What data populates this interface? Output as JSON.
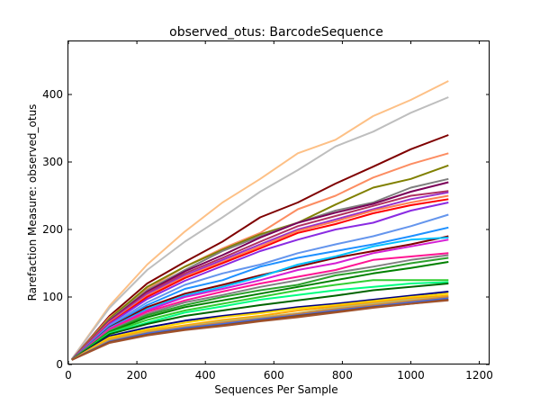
{
  "chart_data": {
    "type": "line",
    "title": "observed_otus: BarcodeSequence",
    "xlabel": "Sequences Per Sample",
    "ylabel": "Rarefaction Measure: observed_otus",
    "xlim": [
      0,
      1230
    ],
    "ylim": [
      0,
      480
    ],
    "x_ticks": [
      0,
      200,
      400,
      600,
      800,
      1000,
      1200
    ],
    "y_ticks": [
      0,
      100,
      200,
      300,
      400
    ],
    "grid": false,
    "legend": "none",
    "x": [
      10,
      120,
      230,
      340,
      450,
      560,
      670,
      780,
      890,
      1000,
      1110
    ],
    "series": [
      {
        "color": "#fdc086",
        "values": [
          8,
          87,
          148,
          197,
          240,
          275,
          313,
          333,
          368,
          392,
          420
        ]
      },
      {
        "color": "#bebebe",
        "values": [
          8,
          84,
          140,
          182,
          218,
          256,
          288,
          323,
          345,
          373,
          396
        ]
      },
      {
        "color": "#7f0000",
        "values": [
          7,
          72,
          120,
          152,
          182,
          218,
          240,
          268,
          293,
          319,
          340
        ]
      },
      {
        "color": "#fc8d62",
        "values": [
          7,
          70,
          112,
          145,
          172,
          195,
          230,
          250,
          277,
          297,
          313
        ]
      },
      {
        "color": "#808000",
        "values": [
          7,
          68,
          115,
          145,
          170,
          193,
          210,
          237,
          262,
          275,
          295
        ]
      },
      {
        "color": "#7f7f7f",
        "values": [
          7,
          66,
          110,
          140,
          168,
          190,
          210,
          228,
          240,
          262,
          275
        ]
      },
      {
        "color": "#7b0058",
        "values": [
          7,
          65,
          108,
          138,
          162,
          188,
          210,
          225,
          238,
          256,
          270
        ]
      },
      {
        "color": "#b03060",
        "values": [
          7,
          64,
          106,
          135,
          158,
          182,
          205,
          220,
          235,
          250,
          257
        ]
      },
      {
        "color": "#9932cc",
        "values": [
          7,
          63,
          104,
          132,
          155,
          178,
          200,
          215,
          230,
          245,
          255
        ]
      },
      {
        "color": "#ff7f50",
        "values": [
          7,
          62,
          102,
          130,
          152,
          175,
          198,
          212,
          228,
          240,
          250
        ]
      },
      {
        "color": "#ff0000",
        "values": [
          7,
          61,
          100,
          128,
          150,
          172,
          195,
          208,
          224,
          236,
          245
        ]
      },
      {
        "color": "#8a2be2",
        "values": [
          7,
          60,
          97,
          124,
          146,
          168,
          185,
          200,
          210,
          228,
          240
        ]
      },
      {
        "color": "#6495ed",
        "values": [
          7,
          58,
          92,
          118,
          135,
          148,
          165,
          178,
          190,
          205,
          222
        ]
      },
      {
        "color": "#1e90ff",
        "values": [
          7,
          56,
          88,
          112,
          125,
          145,
          158,
          168,
          178,
          190,
          203
        ]
      },
      {
        "color": "#7f0000",
        "values": [
          7,
          55,
          85,
          105,
          118,
          132,
          145,
          158,
          168,
          178,
          190
        ]
      },
      {
        "color": "#00bfff",
        "values": [
          7,
          54,
          82,
          102,
          115,
          130,
          148,
          160,
          175,
          185,
          188
        ]
      },
      {
        "color": "#d41ed4",
        "values": [
          7,
          53,
          80,
          100,
          112,
          125,
          140,
          150,
          165,
          175,
          185
        ]
      },
      {
        "color": "#ff1493",
        "values": [
          7,
          52,
          78,
          95,
          108,
          120,
          130,
          140,
          155,
          160,
          165
        ]
      },
      {
        "color": "#808080",
        "values": [
          7,
          50,
          75,
          92,
          103,
          115,
          125,
          136,
          145,
          155,
          162
        ]
      },
      {
        "color": "#2ca02c",
        "values": [
          7,
          49,
          73,
          88,
          100,
          110,
          118,
          132,
          140,
          150,
          158
        ]
      },
      {
        "color": "#008000",
        "values": [
          7,
          48,
          70,
          85,
          95,
          105,
          115,
          125,
          135,
          143,
          152
        ]
      },
      {
        "color": "#32cd32",
        "values": [
          7,
          47,
          66,
          80,
          90,
          100,
          110,
          118,
          125,
          125,
          125
        ]
      },
      {
        "color": "#00ff7f",
        "values": [
          7,
          46,
          62,
          77,
          86,
          96,
          103,
          110,
          115,
          120,
          122
        ]
      },
      {
        "color": "#006400",
        "values": [
          7,
          45,
          60,
          72,
          80,
          88,
          95,
          102,
          110,
          115,
          120
        ]
      },
      {
        "color": "#000080",
        "values": [
          7,
          42,
          55,
          65,
          72,
          78,
          85,
          90,
          96,
          102,
          108
        ]
      },
      {
        "color": "#ffd700",
        "values": [
          7,
          40,
          52,
          62,
          70,
          76,
          83,
          88,
          94,
          100,
          105
        ]
      },
      {
        "color": "#ffa500",
        "values": [
          7,
          38,
          50,
          58,
          66,
          72,
          80,
          86,
          92,
          98,
          102
        ]
      },
      {
        "color": "#bdb76b",
        "values": [
          7,
          36,
          48,
          56,
          64,
          70,
          76,
          84,
          90,
          96,
          100
        ]
      },
      {
        "color": "#cd853f",
        "values": [
          7,
          35,
          47,
          55,
          62,
          68,
          75,
          82,
          88,
          94,
          100
        ]
      },
      {
        "color": "#4169e1",
        "values": [
          7,
          34,
          46,
          54,
          60,
          67,
          73,
          80,
          86,
          92,
          98
        ]
      },
      {
        "color": "#8b4513",
        "values": [
          7,
          33,
          44,
          52,
          58,
          65,
          72,
          78,
          85,
          90,
          96
        ]
      },
      {
        "color": "#a0522d",
        "values": [
          7,
          32,
          43,
          51,
          57,
          64,
          70,
          77,
          84,
          90,
          95
        ]
      }
    ]
  }
}
